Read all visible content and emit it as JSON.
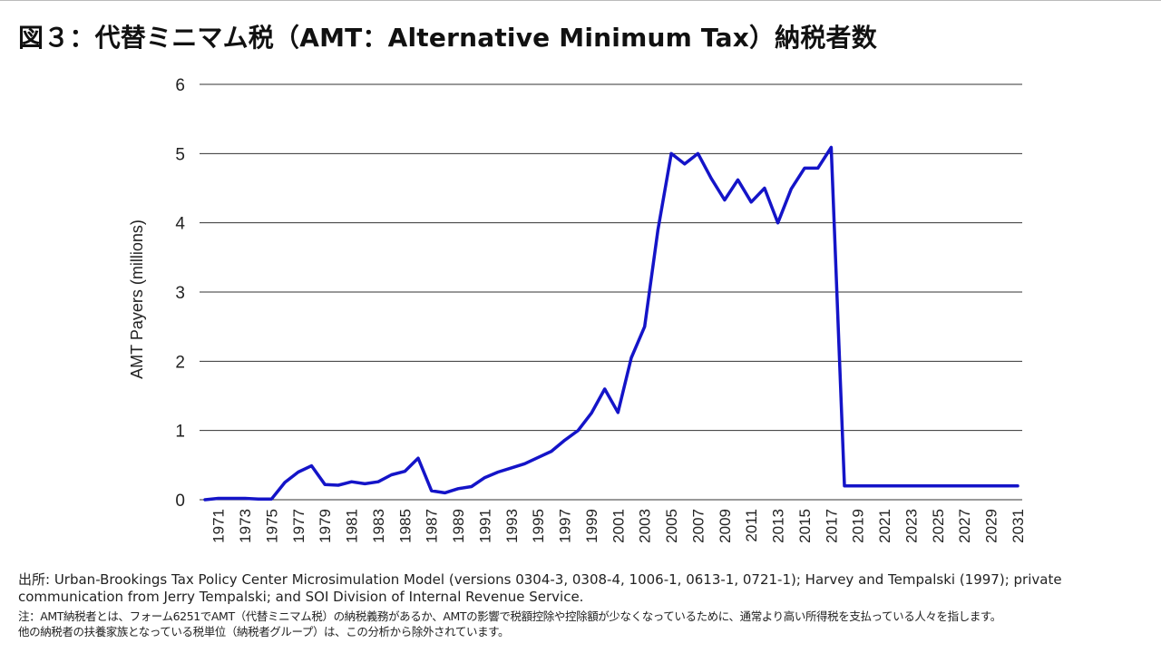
{
  "title": "図３：代替ミニマム税（AMT：Alternative Minimum Tax）納税者数",
  "source": "出所: Urban-Brookings Tax Policy Center Microsimulation Model (versions 0304-3, 0308-4, 1006-1, 0613-1, 0721-1); Harvey and Tempalski (1997); private communication from Jerry Tempalski; and SOI Division of Internal Revenue Service.",
  "note_line1": "注：AMT納税者とは、フォーム6251でAMT（代替ミニマム税）の納税義務があるか、AMTの影響で税額控除や控除額が少なくなっているために、通常より高い所得税を支払っている人々を指します。",
  "note_line2": "他の納税者の扶養家族となっている税単位（納税者グループ）は、この分析から除外されています。",
  "colors": {
    "line": "#1414c8",
    "grid": "#333333",
    "text": "#222222"
  },
  "chart_data": {
    "type": "line",
    "title": "図３：代替ミニマム税（AMT：Alternative Minimum Tax）納税者数",
    "xlabel": "",
    "ylabel": "AMT Payers (millions)",
    "ylim": [
      0,
      6
    ],
    "yticks": [
      0,
      1,
      2,
      3,
      4,
      5,
      6
    ],
    "grid": true,
    "x_tick_labels": [
      "1971",
      "1973",
      "1975",
      "1977",
      "1979",
      "1981",
      "1983",
      "1985",
      "1987",
      "1989",
      "1991",
      "1993",
      "1995",
      "1997",
      "1999",
      "2001",
      "2003",
      "2005",
      "2007",
      "2009",
      "2011",
      "2013",
      "2015",
      "2017",
      "2019",
      "2021",
      "2023",
      "2025",
      "2027",
      "2029",
      "2031"
    ],
    "series": [
      {
        "name": "AMT Payers (millions)",
        "x": [
          1970,
          1971,
          1972,
          1973,
          1974,
          1975,
          1976,
          1977,
          1978,
          1979,
          1980,
          1981,
          1982,
          1983,
          1984,
          1985,
          1986,
          1987,
          1988,
          1989,
          1990,
          1991,
          1992,
          1993,
          1994,
          1995,
          1996,
          1997,
          1998,
          1999,
          2000,
          2001,
          2002,
          2003,
          2004,
          2005,
          2006,
          2007,
          2008,
          2009,
          2010,
          2011,
          2012,
          2013,
          2014,
          2015,
          2016,
          2017,
          2018,
          2019,
          2020,
          2021,
          2022,
          2023,
          2024,
          2025,
          2026,
          2027,
          2028,
          2029,
          2030,
          2031
        ],
        "values": [
          0.0,
          0.02,
          0.02,
          0.02,
          0.01,
          0.01,
          0.25,
          0.4,
          0.49,
          0.22,
          0.21,
          0.26,
          0.23,
          0.26,
          0.36,
          0.41,
          0.6,
          0.13,
          0.1,
          0.16,
          0.19,
          0.32,
          0.4,
          0.46,
          0.52,
          0.61,
          0.7,
          0.86,
          1.0,
          1.25,
          1.6,
          1.26,
          2.05,
          2.5,
          3.9,
          5.0,
          4.85,
          5.0,
          4.64,
          4.33,
          4.62,
          4.3,
          4.5,
          4.0,
          4.49,
          4.79,
          4.79,
          5.09,
          0.2,
          0.2,
          0.2,
          0.2,
          0.2,
          0.2,
          0.2,
          0.2,
          0.2,
          0.2,
          0.2,
          0.2,
          0.2,
          0.2
        ]
      }
    ]
  }
}
